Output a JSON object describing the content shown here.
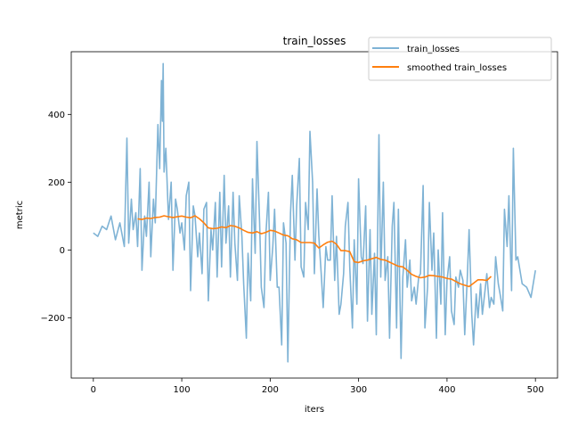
{
  "chart_data": {
    "type": "line",
    "title": "train_losses",
    "xlabel": "iters",
    "ylabel": "metric",
    "xlim": [
      -25,
      525
    ],
    "ylim": [
      -378,
      585
    ],
    "xticks": [
      0,
      100,
      200,
      300,
      400,
      500
    ],
    "yticks": [
      -200,
      0,
      200,
      400
    ],
    "ytick_labels": [
      "−200",
      "0",
      "200",
      "400"
    ],
    "legend_position": "top-right",
    "grid": false,
    "series": [
      {
        "name": "train_losses",
        "color": "#7fb3d5",
        "x": [
          0,
          5,
          10,
          15,
          20,
          25,
          30,
          35,
          38,
          40,
          43,
          45,
          48,
          50,
          53,
          55,
          58,
          60,
          63,
          65,
          68,
          70,
          73,
          75,
          77,
          78,
          79,
          80,
          82,
          85,
          88,
          90,
          93,
          95,
          98,
          100,
          103,
          105,
          108,
          110,
          113,
          115,
          118,
          120,
          123,
          125,
          128,
          130,
          133,
          135,
          138,
          140,
          143,
          145,
          148,
          150,
          153,
          155,
          158,
          160,
          163,
          165,
          168,
          170,
          173,
          175,
          178,
          180,
          183,
          185,
          188,
          190,
          193,
          195,
          198,
          200,
          203,
          205,
          208,
          210,
          213,
          215,
          218,
          220,
          223,
          225,
          228,
          230,
          233,
          235,
          238,
          240,
          243,
          245,
          248,
          250,
          253,
          255,
          258,
          260,
          263,
          265,
          268,
          270,
          273,
          275,
          278,
          280,
          283,
          285,
          288,
          290,
          293,
          295,
          298,
          300,
          303,
          305,
          308,
          310,
          313,
          315,
          318,
          320,
          323,
          325,
          328,
          330,
          333,
          335,
          338,
          340,
          343,
          345,
          348,
          350,
          353,
          355,
          358,
          360,
          363,
          365,
          368,
          370,
          373,
          375,
          378,
          380,
          383,
          385,
          388,
          390,
          393,
          395,
          398,
          400,
          403,
          405,
          408,
          410,
          413,
          415,
          418,
          420,
          423,
          425,
          428,
          430,
          433,
          435,
          438,
          440,
          443,
          445,
          448,
          450,
          453,
          455,
          458,
          460,
          463,
          465,
          468,
          470,
          473,
          475,
          478,
          480,
          485,
          490,
          495,
          500
        ],
        "y": [
          50,
          40,
          70,
          60,
          100,
          30,
          80,
          10,
          330,
          20,
          150,
          60,
          110,
          10,
          240,
          -60,
          100,
          40,
          200,
          -20,
          150,
          80,
          370,
          240,
          500,
          380,
          550,
          230,
          300,
          90,
          200,
          -60,
          150,
          120,
          50,
          80,
          0,
          160,
          200,
          -120,
          130,
          100,
          -20,
          50,
          -70,
          120,
          140,
          -150,
          60,
          0,
          140,
          -80,
          170,
          -50,
          220,
          20,
          130,
          -80,
          170,
          20,
          -90,
          160,
          40,
          -100,
          -260,
          -10,
          -150,
          210,
          -10,
          320,
          80,
          -110,
          -170,
          40,
          170,
          -90,
          10,
          120,
          -110,
          -110,
          -280,
          80,
          20,
          -330,
          110,
          220,
          -30,
          130,
          270,
          -50,
          -80,
          140,
          60,
          350,
          200,
          -70,
          180,
          40,
          -80,
          -170,
          10,
          -30,
          -30,
          160,
          -90,
          40,
          -190,
          -160,
          -70,
          70,
          140,
          -50,
          -230,
          30,
          -160,
          210,
          -20,
          -40,
          130,
          -210,
          60,
          -190,
          -10,
          -250,
          340,
          -80,
          200,
          -90,
          -20,
          -260,
          70,
          140,
          -230,
          120,
          -320,
          -80,
          30,
          -110,
          -30,
          -150,
          -110,
          -160,
          -80,
          -70,
          190,
          -230,
          -110,
          140,
          -60,
          50,
          -260,
          0,
          -160,
          110,
          -250,
          -90,
          -20,
          -180,
          -220,
          -80,
          -110,
          -60,
          -90,
          -250,
          -80,
          60,
          -190,
          -280,
          -130,
          -200,
          -100,
          -190,
          -120,
          -70,
          -170,
          -140,
          -160,
          -20,
          -100,
          -130,
          -180,
          120,
          10,
          160,
          -120,
          300,
          -30,
          -20,
          -100,
          -110,
          -140,
          -60
        ]
      },
      {
        "name": "smoothed train_losses",
        "color": "#ff7f0e",
        "x": [
          50,
          55,
          60,
          65,
          70,
          75,
          80,
          85,
          90,
          95,
          100,
          105,
          110,
          115,
          120,
          125,
          130,
          135,
          140,
          145,
          150,
          155,
          160,
          165,
          170,
          175,
          180,
          185,
          190,
          195,
          200,
          205,
          210,
          215,
          220,
          225,
          230,
          235,
          240,
          245,
          250,
          255,
          260,
          265,
          270,
          275,
          280,
          285,
          290,
          295,
          300,
          305,
          310,
          315,
          320,
          325,
          330,
          335,
          340,
          345,
          350,
          355,
          360,
          365,
          370,
          375,
          380,
          385,
          390,
          395,
          400,
          405,
          410,
          415,
          420,
          425,
          430,
          435,
          440,
          445,
          450
        ],
        "y": [
          92,
          90,
          94,
          93,
          96,
          97,
          101,
          98,
          96,
          98,
          100,
          97,
          95,
          101,
          92,
          80,
          65,
          63,
          64,
          68,
          66,
          72,
          70,
          65,
          58,
          52,
          50,
          54,
          48,
          52,
          58,
          56,
          50,
          44,
          42,
          33,
          30,
          22,
          22,
          22,
          20,
          6,
          15,
          23,
          26,
          17,
          -2,
          -2,
          -5,
          -35,
          -37,
          -32,
          -30,
          -26,
          -22,
          -28,
          -30,
          -36,
          -42,
          -48,
          -50,
          -60,
          -72,
          -78,
          -82,
          -80,
          -75,
          -76,
          -78,
          -80,
          -84,
          -86,
          -93,
          -100,
          -104,
          -108,
          -98,
          -88,
          -88,
          -90,
          -78
        ]
      }
    ]
  }
}
